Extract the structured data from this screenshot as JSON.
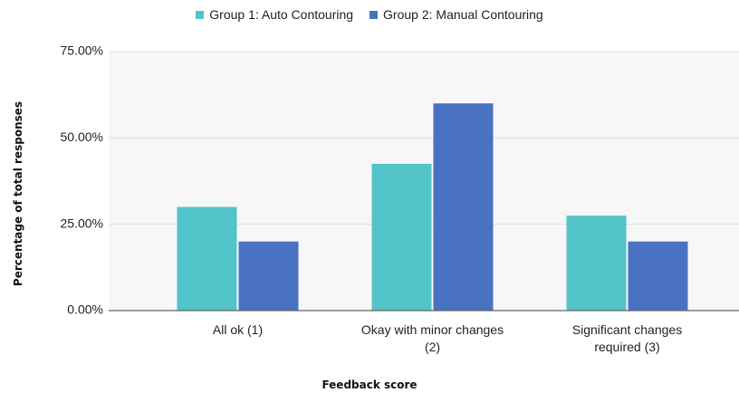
{
  "chart_data": {
    "type": "bar",
    "x_label": "Feedback score",
    "y_label": "Percentage of total responses",
    "categories": [
      "All ok (1)",
      "Okay with minor changes (2)",
      "Significant changes required (3)"
    ],
    "series": [
      {
        "name": "Group 1: Auto Contouring",
        "color": "#52c3c9",
        "values": [
          30,
          42.5,
          27.5
        ]
      },
      {
        "name": "Group 2: Manual Contouring",
        "color": "#4a72c2",
        "values": [
          20,
          60,
          20
        ]
      }
    ],
    "ylim": [
      0,
      75
    ],
    "yticks": [
      {
        "value": 0,
        "label": "0.00%"
      },
      {
        "value": 25,
        "label": "25.00%"
      },
      {
        "value": 50,
        "label": "50.00%"
      },
      {
        "value": 75,
        "label": "75.00%"
      }
    ],
    "grid": true,
    "legend": "top"
  }
}
